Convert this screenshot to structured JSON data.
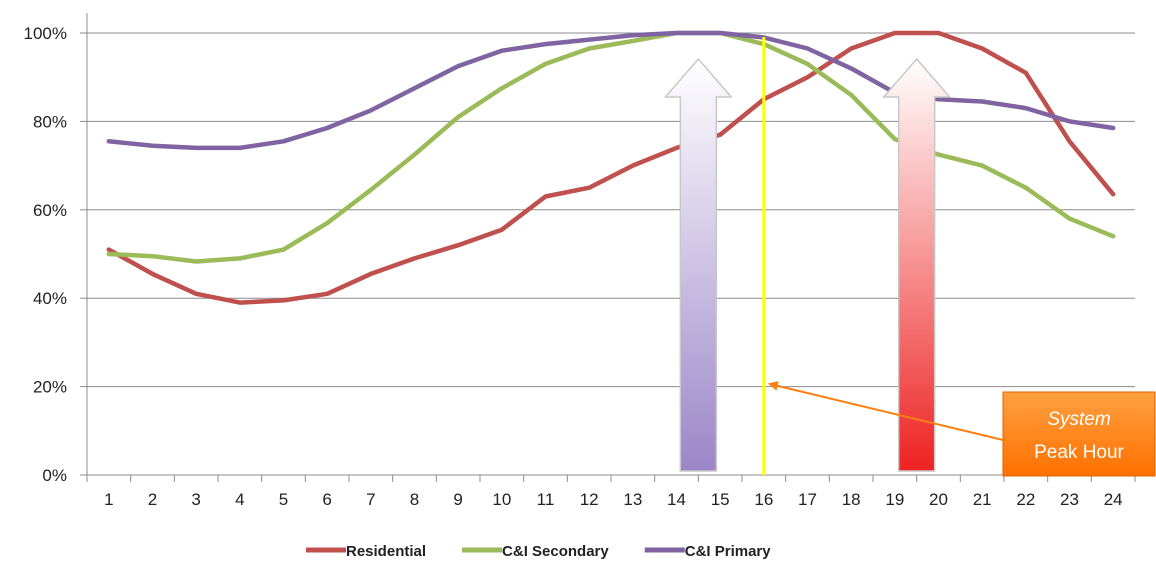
{
  "chart_data": {
    "type": "line",
    "x": [
      1,
      2,
      3,
      4,
      5,
      6,
      7,
      8,
      9,
      10,
      11,
      12,
      13,
      14,
      15,
      16,
      17,
      18,
      19,
      20,
      21,
      22,
      23,
      24
    ],
    "xlabel": "",
    "ylabel": "",
    "ylim": [
      0,
      100
    ],
    "yticks": [
      "0%",
      "20%",
      "40%",
      "60%",
      "80%",
      "100%"
    ],
    "ytick_values": [
      0,
      20,
      40,
      60,
      80,
      100
    ],
    "grid": true,
    "legend_position": "bottom",
    "series": [
      {
        "name": "Residential",
        "color": "#c0504d",
        "values": [
          51,
          45.5,
          41,
          39,
          39.5,
          41,
          45.5,
          49,
          52,
          55.5,
          63,
          65,
          70,
          74,
          77,
          85,
          90,
          96.5,
          100,
          100,
          96.5,
          91,
          75.5,
          63.5
        ]
      },
      {
        "name": "C&I Secondary",
        "color": "#9bbb59",
        "values": [
          50,
          49.5,
          48.3,
          49,
          51,
          57,
          64.5,
          72.5,
          81,
          87.5,
          93,
          96.5,
          98.2,
          100,
          100,
          97.5,
          93,
          86,
          76,
          72.5,
          70,
          65,
          58,
          54
        ]
      },
      {
        "name": "C&I Primary",
        "color": "#8064a2",
        "values": [
          75.5,
          74.5,
          74,
          74,
          75.5,
          78.5,
          82.5,
          87.5,
          92.5,
          96,
          97.5,
          98.5,
          99.5,
          100,
          100,
          99,
          96.5,
          92,
          86.5,
          85,
          84.5,
          83,
          80,
          78.5
        ]
      }
    ],
    "annotations": {
      "peak_line_x": 16,
      "peak_line_color": "#ffff00",
      "arrow_c_and_i_x": 14.5,
      "arrow_residential_x": 19.5,
      "arrow_c_and_i_color": "#9b85c8",
      "arrow_residential_color": "#ee2222",
      "callout": {
        "line1": "System",
        "line2": "Peak Hour",
        "color": "#ff7f0e"
      }
    }
  }
}
